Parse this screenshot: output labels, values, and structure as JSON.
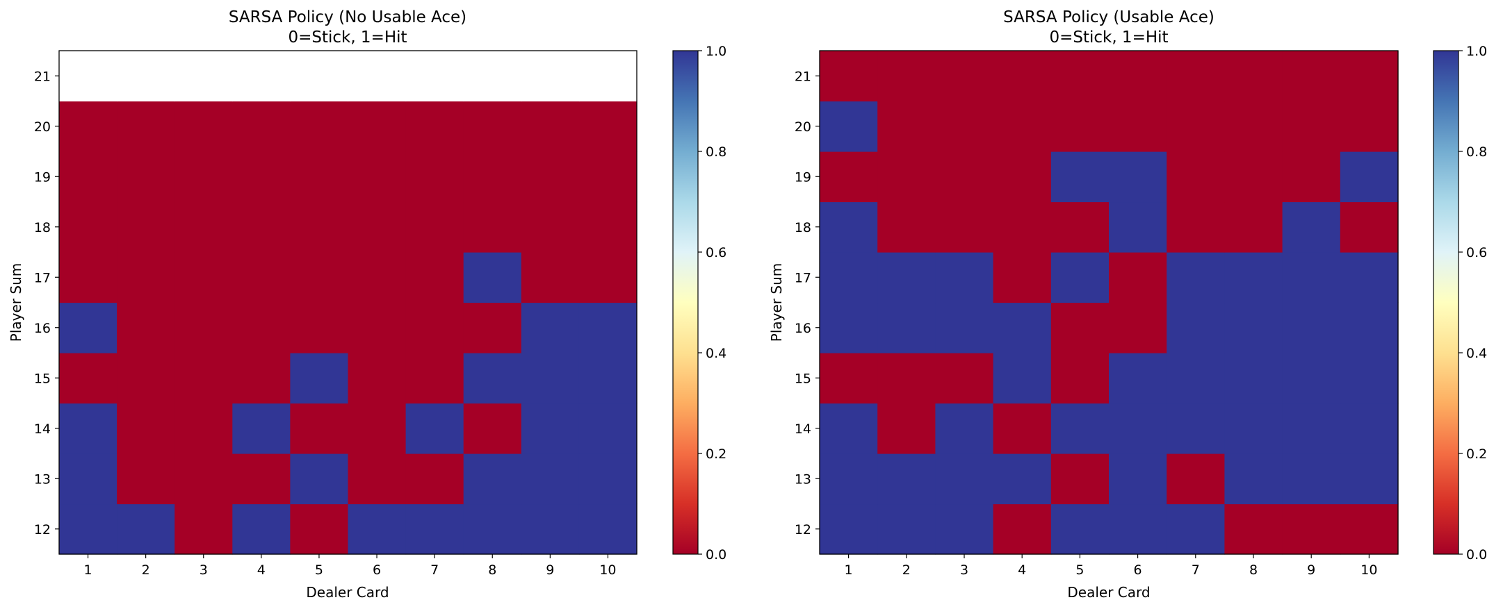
{
  "chart_data": [
    {
      "type": "heatmap",
      "title": "SARSA Policy (No Usable Ace)\n0=Stick, 1=Hit",
      "title_lines": [
        "SARSA Policy (No Usable Ace)",
        "0=Stick, 1=Hit"
      ],
      "xlabel": "Dealer Card",
      "ylabel": "Player Sum",
      "x": [
        1,
        2,
        3,
        4,
        5,
        6,
        7,
        8,
        9,
        10
      ],
      "y": [
        12,
        13,
        14,
        15,
        16,
        17,
        18,
        19,
        20,
        21
      ],
      "x_tick_labels": [
        "1",
        "2",
        "3",
        "4",
        "5",
        "6",
        "7",
        "8",
        "9",
        "10"
      ],
      "y_tick_labels": [
        "12",
        "13",
        "14",
        "15",
        "16",
        "17",
        "18",
        "19",
        "20",
        "21"
      ],
      "values": [
        [
          1,
          1,
          0,
          1,
          0,
          1,
          1,
          1,
          1,
          1
        ],
        [
          1,
          0,
          0,
          0,
          1,
          0,
          0,
          1,
          1,
          1
        ],
        [
          1,
          0,
          0,
          1,
          0,
          0,
          1,
          0,
          1,
          1
        ],
        [
          0,
          0,
          0,
          0,
          1,
          0,
          0,
          1,
          1,
          1
        ],
        [
          1,
          0,
          0,
          0,
          0,
          0,
          0,
          0,
          1,
          1
        ],
        [
          0,
          0,
          0,
          0,
          0,
          0,
          0,
          1,
          0,
          0
        ],
        [
          0,
          0,
          0,
          0,
          0,
          0,
          0,
          0,
          0,
          0
        ],
        [
          0,
          0,
          0,
          0,
          0,
          0,
          0,
          0,
          0,
          0
        ],
        [
          0,
          0,
          0,
          0,
          0,
          0,
          0,
          0,
          0,
          0
        ],
        [
          null,
          null,
          null,
          null,
          null,
          null,
          null,
          null,
          null,
          null
        ]
      ],
      "colormap": "RdYlBu",
      "clim": [
        0,
        1
      ],
      "colorbar_ticks": [
        "0.0",
        "0.2",
        "0.4",
        "0.6",
        "0.8",
        "1.0"
      ],
      "grid": false
    },
    {
      "type": "heatmap",
      "title": "SARSA Policy (Usable Ace)\n0=Stick, 1=Hit",
      "title_lines": [
        "SARSA Policy (Usable Ace)",
        "0=Stick, 1=Hit"
      ],
      "xlabel": "Dealer Card",
      "ylabel": "Player Sum",
      "x": [
        1,
        2,
        3,
        4,
        5,
        6,
        7,
        8,
        9,
        10
      ],
      "y": [
        12,
        13,
        14,
        15,
        16,
        17,
        18,
        19,
        20,
        21
      ],
      "x_tick_labels": [
        "1",
        "2",
        "3",
        "4",
        "5",
        "6",
        "7",
        "8",
        "9",
        "10"
      ],
      "y_tick_labels": [
        "12",
        "13",
        "14",
        "15",
        "16",
        "17",
        "18",
        "19",
        "20",
        "21"
      ],
      "values": [
        [
          1,
          1,
          1,
          0,
          1,
          1,
          1,
          0,
          0,
          0
        ],
        [
          1,
          1,
          1,
          1,
          0,
          1,
          0,
          1,
          1,
          1
        ],
        [
          1,
          0,
          1,
          0,
          1,
          1,
          1,
          1,
          1,
          1
        ],
        [
          0,
          0,
          0,
          1,
          0,
          1,
          1,
          1,
          1,
          1
        ],
        [
          1,
          1,
          1,
          1,
          0,
          0,
          1,
          1,
          1,
          1
        ],
        [
          1,
          1,
          1,
          0,
          1,
          0,
          1,
          1,
          1,
          1
        ],
        [
          1,
          0,
          0,
          0,
          0,
          1,
          0,
          0,
          1,
          0
        ],
        [
          0,
          0,
          0,
          0,
          1,
          1,
          0,
          0,
          0,
          1
        ],
        [
          1,
          0,
          0,
          0,
          0,
          0,
          0,
          0,
          0,
          0
        ],
        [
          0,
          0,
          0,
          0,
          0,
          0,
          0,
          0,
          0,
          0
        ]
      ],
      "colormap": "RdYlBu",
      "clim": [
        0,
        1
      ],
      "colorbar_ticks": [
        "0.0",
        "0.2",
        "0.4",
        "0.6",
        "0.8",
        "1.0"
      ],
      "grid": false
    }
  ],
  "colors": {
    "stick": "#a50026",
    "hit": "#313695",
    "colorbar_stops": [
      "#a50026",
      "#d73027",
      "#f46d43",
      "#fdae61",
      "#fee090",
      "#ffffbf",
      "#e0f3f8",
      "#abd9e9",
      "#74add1",
      "#4575b4",
      "#313695"
    ]
  }
}
